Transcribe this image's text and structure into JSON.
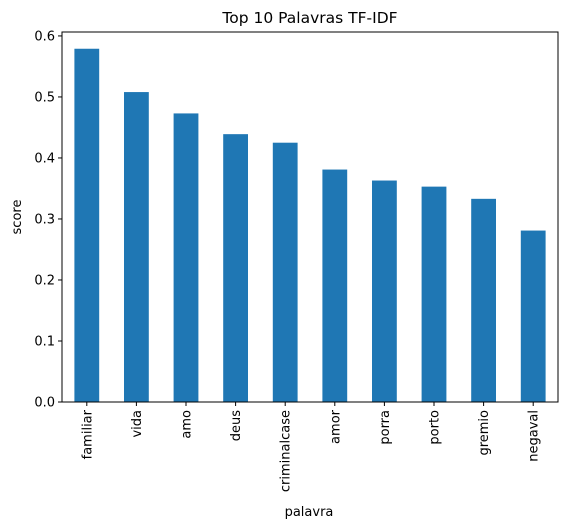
{
  "chart_data": {
    "type": "bar",
    "title": "Top 10 Palavras TF-IDF",
    "xlabel": "palavra",
    "ylabel": "score",
    "categories": [
      "familiar",
      "vida",
      "amo",
      "deus",
      "criminalcase",
      "amor",
      "porra",
      "porto",
      "gremio",
      "negaval"
    ],
    "values": [
      0.579,
      0.508,
      0.473,
      0.439,
      0.425,
      0.381,
      0.363,
      0.353,
      0.333,
      0.281
    ],
    "ylim": [
      0,
      0.6
    ],
    "yticks": [
      "0.0",
      "0.1",
      "0.2",
      "0.3",
      "0.4",
      "0.5",
      "0.6"
    ],
    "bar_color": "#1f77b4",
    "grid": false,
    "legend": "none"
  }
}
